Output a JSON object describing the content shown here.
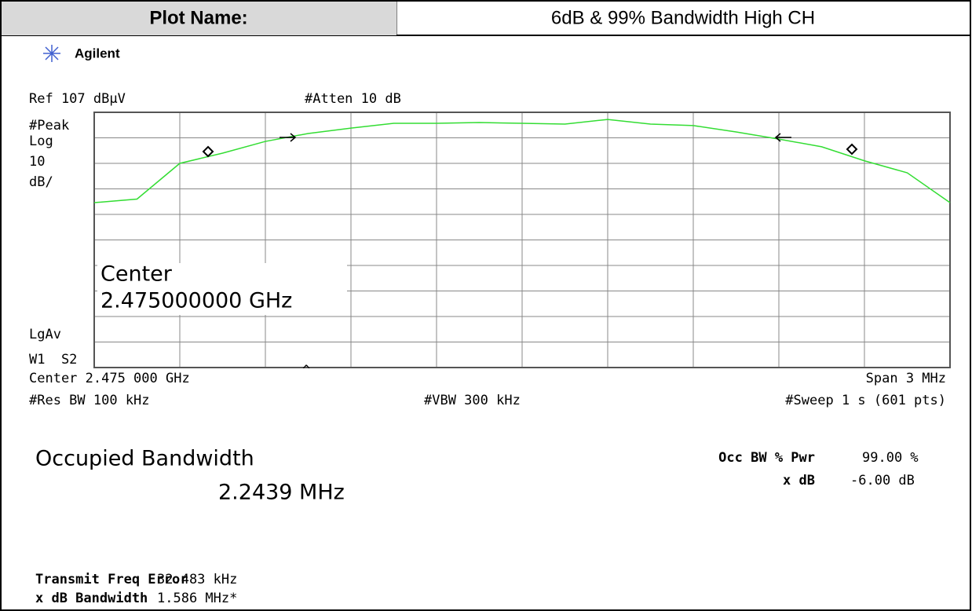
{
  "header": {
    "label": "Plot Name:",
    "value": "6dB & 99% Bandwidth High CH"
  },
  "brand": "Agilent",
  "instrument": {
    "ref": "Ref 107 dBµV",
    "atten": "#Atten 10 dB",
    "detector": "#Peak",
    "scale_type": "Log",
    "scale_value": "10",
    "scale_unit": "dB/",
    "averaging": "LgAv",
    "trace_mode": "W1  S2",
    "center_overlay_label": "Center",
    "center_overlay_value": "2.475000000 GHz",
    "center": "Center 2.475 000 GHz",
    "caret": "^",
    "span": "Span 3 MHz",
    "res_bw": "#Res BW 100 kHz",
    "vbw": "#VBW 300 kHz",
    "sweep": "#Sweep 1 s (601 pts)"
  },
  "results": {
    "occupied_label": "Occupied Bandwidth",
    "occupied_value": "2.2439 MHz",
    "occ_pwr_label": "Occ BW % Pwr",
    "occ_pwr_value": "99.00 %",
    "xdb_label": "x dB",
    "xdb_value": "-6.00 dB",
    "freq_error_label": "Transmit Freq Error",
    "freq_error_value": "32.483 kHz",
    "xdb_bw_label": "x dB Bandwidth",
    "xdb_bw_value": "1.586 MHz*"
  },
  "chart_data": {
    "type": "line",
    "xlim": [
      2473.5,
      2476.5
    ],
    "ylim": [
      7,
      107
    ],
    "x": [
      2473.5,
      2473.65,
      2473.8,
      2473.95,
      2474.1,
      2474.25,
      2474.4,
      2474.55,
      2474.7,
      2474.85,
      2475.0,
      2475.15,
      2475.3,
      2475.45,
      2475.6,
      2475.75,
      2475.9,
      2476.05,
      2476.2,
      2476.35,
      2476.5
    ],
    "series": [
      {
        "color": "#33dd33",
        "values": [
          71.6,
          73,
          87,
          91,
          95.6,
          98.7,
          100.8,
          102.7,
          102.7,
          103,
          102.7,
          102.4,
          104.2,
          102.4,
          101.8,
          99.3,
          96.5,
          93.5,
          88,
          83.3,
          71.6
        ]
      }
    ]
  }
}
